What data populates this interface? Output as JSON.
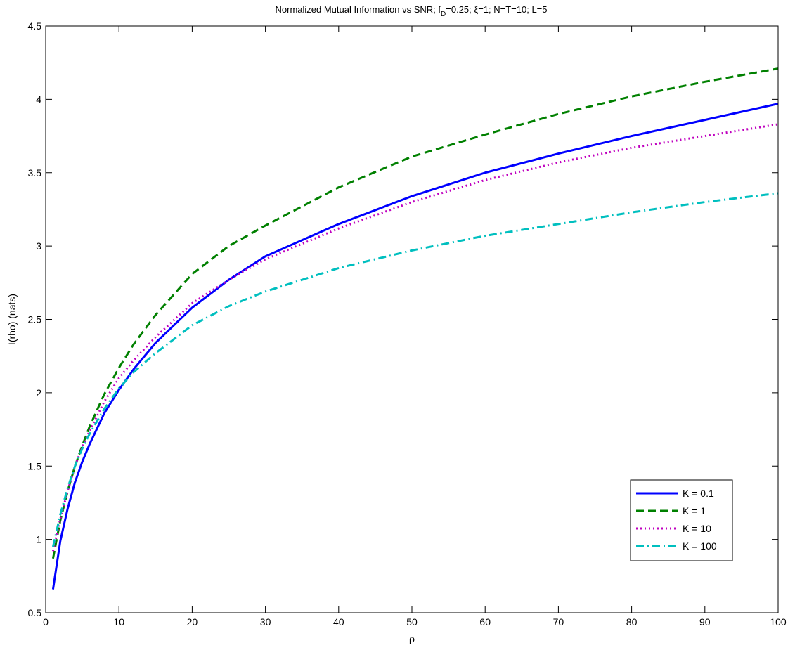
{
  "chart_data": {
    "type": "line",
    "title": "Normalized Mutual Information vs SNR; f",
    "title_sub": "D",
    "title_rest": "=0.25; ξ=1; N=T=10; L=5",
    "xlabel": "ρ",
    "ylabel": "I(rho) (nats)",
    "xlim": [
      0,
      100
    ],
    "ylim": [
      0.5,
      4.5
    ],
    "xticks": [
      0,
      10,
      20,
      30,
      40,
      50,
      60,
      70,
      80,
      90,
      100
    ],
    "yticks": [
      0.5,
      1,
      1.5,
      2,
      2.5,
      3,
      3.5,
      4,
      4.5
    ],
    "xtick_labels": [
      "0",
      "10",
      "20",
      "30",
      "40",
      "50",
      "60",
      "70",
      "80",
      "90",
      "100"
    ],
    "ytick_labels": [
      "0.5",
      "1",
      "1.5",
      "2",
      "2.5",
      "3",
      "3.5",
      "4",
      "4.5"
    ],
    "grid": false,
    "legend_position": "bottom-right",
    "series": [
      {
        "name": "K = 0.1",
        "color": "#0000ff",
        "dash": "solid",
        "x": [
          1,
          2,
          3,
          4,
          5,
          6,
          8,
          10,
          12,
          15,
          20,
          25,
          30,
          40,
          50,
          60,
          70,
          80,
          90,
          100
        ],
        "y": [
          0.66,
          0.99,
          1.21,
          1.39,
          1.53,
          1.65,
          1.86,
          2.02,
          2.16,
          2.34,
          2.58,
          2.77,
          2.93,
          3.15,
          3.34,
          3.5,
          3.63,
          3.75,
          3.86,
          3.97
        ]
      },
      {
        "name": "K = 1",
        "color": "#008000",
        "dash": "dashed",
        "x": [
          1,
          2,
          3,
          4,
          5,
          6,
          8,
          10,
          12,
          15,
          20,
          25,
          30,
          40,
          50,
          60,
          70,
          80,
          90,
          100
        ],
        "y": [
          0.87,
          1.13,
          1.33,
          1.5,
          1.64,
          1.77,
          1.99,
          2.17,
          2.33,
          2.53,
          2.81,
          3.0,
          3.14,
          3.4,
          3.61,
          3.76,
          3.9,
          4.02,
          4.12,
          4.21
        ]
      },
      {
        "name": "K = 10",
        "color": "#bf00bf",
        "dash": "dotted",
        "x": [
          1,
          2,
          3,
          4,
          5,
          6,
          8,
          10,
          12,
          15,
          20,
          25,
          30,
          40,
          50,
          60,
          70,
          80,
          90,
          100
        ],
        "y": [
          0.92,
          1.14,
          1.33,
          1.5,
          1.63,
          1.74,
          1.94,
          2.1,
          2.22,
          2.38,
          2.61,
          2.77,
          2.91,
          3.12,
          3.3,
          3.45,
          3.57,
          3.67,
          3.75,
          3.83
        ]
      },
      {
        "name": "K = 100",
        "color": "#00bfbf",
        "dash": "dashdot",
        "x": [
          1,
          2,
          3,
          4,
          5,
          6,
          8,
          10,
          12,
          15,
          20,
          25,
          30,
          40,
          50,
          60,
          70,
          80,
          90,
          100
        ],
        "y": [
          0.95,
          1.17,
          1.35,
          1.5,
          1.62,
          1.72,
          1.89,
          2.03,
          2.14,
          2.27,
          2.46,
          2.59,
          2.69,
          2.85,
          2.97,
          3.07,
          3.15,
          3.23,
          3.3,
          3.36
        ]
      }
    ]
  }
}
